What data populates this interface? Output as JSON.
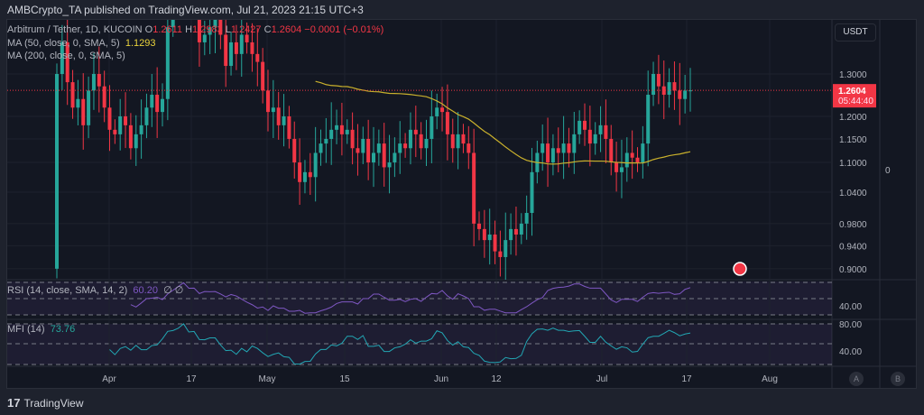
{
  "header": {
    "published": "AMBCrypto_TA published on TradingView.com, Jul 21, 2023 21:15 UTC+3"
  },
  "legend": {
    "symbol": "Arbitrum / Tether, 1D, KUCOIN",
    "o_label": "O",
    "o": "1.2611",
    "h_label": "H",
    "h": "1.2983",
    "l_label": "L",
    "l": "1.2427",
    "c_label": "C",
    "c": "1.2604",
    "change": "−0.0001 (−0.01%)",
    "ma50": "MA (50, close, 0, SMA, 5)",
    "ma50_value": "1.1293",
    "ma200": "MA (200, close, 0, SMA, 5)",
    "rsi": "RSI (14, close, SMA, 14, 2)",
    "rsi_value": "60.20",
    "rsi_extra": "∅ ∅",
    "mfi": "MFI (14)",
    "mfi_value": "73.76"
  },
  "price_axis": {
    "currency": "USDT",
    "ticks": [
      "1.3000",
      "1.2000",
      "1.1500",
      "1.1000",
      "1.0400",
      "0.9800",
      "0.9400",
      "0.9000"
    ],
    "last_price": "1.2604",
    "countdown": "05:44:40",
    "rsi_ticks": [
      "40.00"
    ],
    "mfi_ticks": [
      "80.00",
      "40.00"
    ],
    "secondary_zero": "0"
  },
  "time_axis": {
    "labels": [
      "Apr",
      "17",
      "May",
      "15",
      "Jun",
      "12",
      "Jul",
      "17",
      "Aug"
    ]
  },
  "buttons": {
    "a": "A",
    "b": "B"
  },
  "logo": "TradingView",
  "colors": {
    "up": "#26a69a",
    "down": "#f23645",
    "ma50": "#c9b02c",
    "rsi": "#7e57c2",
    "mfi": "#22a6b3"
  },
  "chart_data": {
    "type": "candlestick",
    "start_date": "2023-03-23",
    "scale": "log",
    "closes": [
      1.3,
      1.38,
      1.28,
      1.22,
      1.24,
      1.18,
      1.26,
      1.3,
      1.27,
      1.22,
      1.17,
      1.16,
      1.2,
      1.18,
      1.13,
      1.16,
      1.18,
      1.22,
      1.25,
      1.21,
      1.24,
      1.42,
      1.5,
      1.55,
      1.62,
      1.5,
      1.55,
      1.38,
      1.4,
      1.42,
      1.45,
      1.4,
      1.32,
      1.38,
      1.35,
      1.4,
      1.38,
      1.35,
      1.33,
      1.26,
      1.21,
      1.22,
      1.18,
      1.2,
      1.15,
      1.1,
      1.06,
      1.08,
      1.07,
      1.12,
      1.14,
      1.15,
      1.17,
      1.18,
      1.16,
      1.17,
      1.13,
      1.12,
      1.15,
      1.1,
      1.12,
      1.14,
      1.09,
      1.1,
      1.12,
      1.14,
      1.13,
      1.17,
      1.16,
      1.13,
      1.15,
      1.2,
      1.22,
      1.21,
      1.16,
      1.13,
      1.16,
      1.14,
      1.12,
      0.98,
      0.97,
      0.95,
      0.96,
      0.93,
      0.92,
      0.95,
      0.97,
      0.96,
      0.98,
      1.0,
      1.08,
      1.12,
      1.14,
      1.1,
      1.13,
      1.12,
      1.14,
      1.12,
      1.16,
      1.19,
      1.17,
      1.14,
      1.16,
      1.18,
      1.15,
      1.1,
      1.08,
      1.09,
      1.12,
      1.11,
      1.1,
      1.14,
      1.25,
      1.3,
      1.27,
      1.25,
      1.28,
      1.26,
      1.24,
      1.26,
      1.2604
    ],
    "first_open": 0.9,
    "ma_period": 50
  }
}
